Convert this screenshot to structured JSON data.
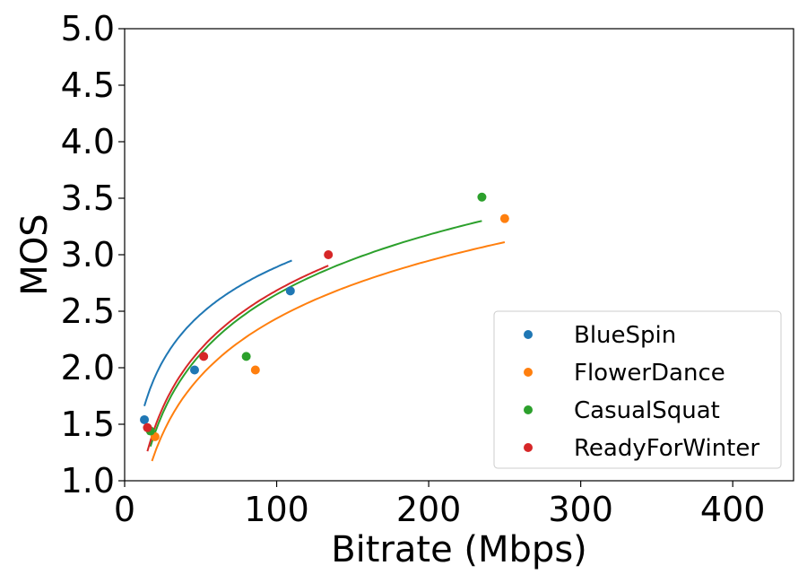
{
  "chart_data": {
    "type": "scatter",
    "title": "",
    "xlabel": "Bitrate (Mbps)",
    "ylabel": "MOS",
    "xlim": [
      0,
      440
    ],
    "ylim": [
      1.0,
      5.0
    ],
    "xticks": [
      0,
      100,
      200,
      300,
      400
    ],
    "xtick_labels": [
      "0",
      "100",
      "200",
      "300",
      "400"
    ],
    "yticks": [
      1.0,
      1.5,
      2.0,
      2.5,
      3.0,
      3.5,
      4.0,
      4.5,
      5.0
    ],
    "ytick_labels": [
      "1.0",
      "1.5",
      "2.0",
      "2.5",
      "3.0",
      "3.5",
      "4.0",
      "4.5",
      "5.0"
    ],
    "grid": false,
    "legend_position": "bottom-right",
    "series": [
      {
        "name": "BlueSpin",
        "color": "#1f77b4",
        "points": [
          [
            13,
            1.54
          ],
          [
            46,
            1.98
          ],
          [
            109,
            2.68
          ]
        ],
        "fit": {
          "model": "log",
          "a": 0.603,
          "b": 0.1145,
          "x_range": [
            13,
            110
          ]
        }
      },
      {
        "name": "FlowerDance",
        "color": "#ff7f0e",
        "points": [
          [
            20,
            1.39
          ],
          [
            86,
            1.98
          ],
          [
            250,
            3.32
          ]
        ],
        "fit": {
          "model": "log",
          "a": 0.736,
          "b": -0.953,
          "x_range": [
            18,
            250
          ]
        }
      },
      {
        "name": "CasualSquat",
        "color": "#2ca02c",
        "points": [
          [
            17,
            1.44
          ],
          [
            80,
            2.1
          ],
          [
            235,
            3.51
          ]
        ],
        "fit": {
          "model": "log",
          "a": 0.76,
          "b": -0.85,
          "x_range": [
            17,
            235
          ]
        }
      },
      {
        "name": "ReadyForWinter",
        "color": "#d62728",
        "points": [
          [
            15,
            1.47
          ],
          [
            52,
            2.1
          ],
          [
            134,
            3.0
          ]
        ],
        "fit": {
          "model": "log",
          "a": 0.75,
          "b": -0.77,
          "x_range": [
            15,
            134
          ]
        }
      }
    ]
  }
}
